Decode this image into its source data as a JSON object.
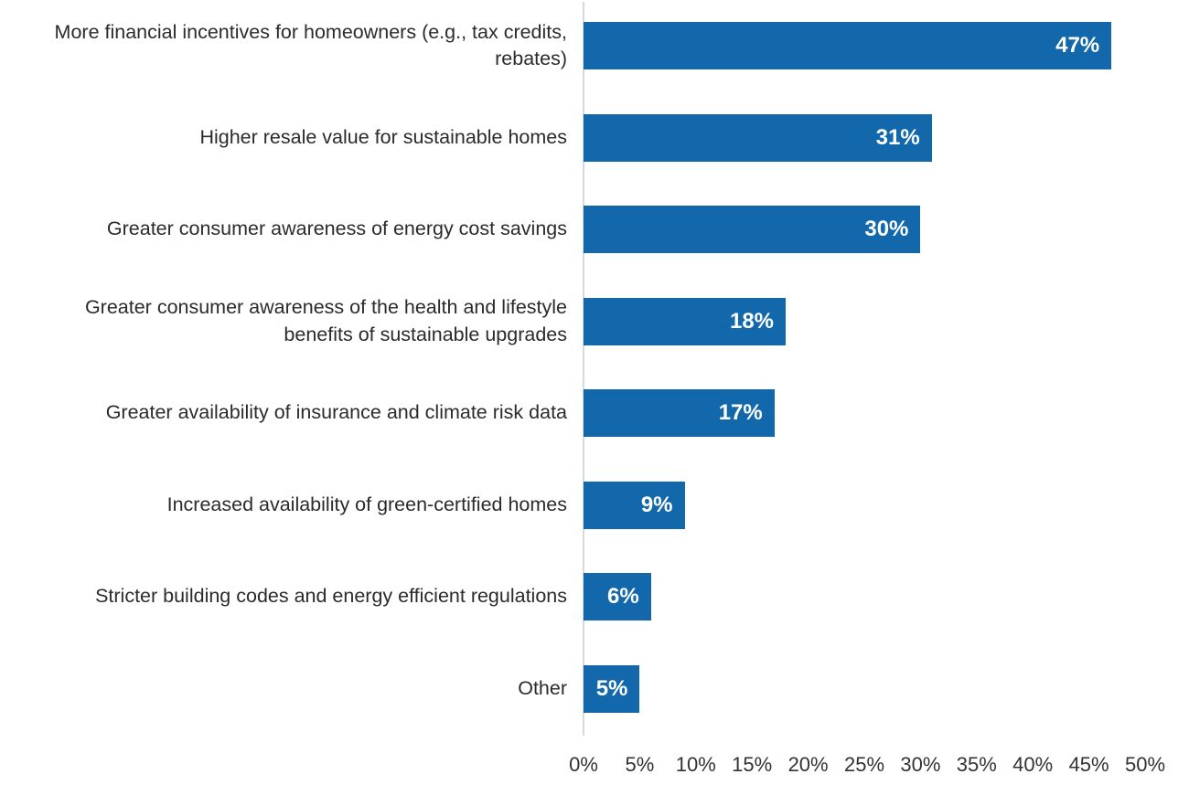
{
  "chart_data": {
    "type": "bar",
    "orientation": "horizontal",
    "categories": [
      "More financial incentives for homeowners (e.g., tax credits, rebates)",
      "Higher resale value for sustainable homes",
      "Greater consumer awareness of energy cost savings",
      "Greater consumer awareness of the health and lifestyle benefits of sustainable upgrades",
      "Greater availability of insurance and climate risk data",
      "Increased availability of green-certified homes",
      "Stricter building codes and energy efficient regulations",
      "Other"
    ],
    "values": [
      47,
      31,
      30,
      18,
      17,
      9,
      6,
      5
    ],
    "value_labels": [
      "47%",
      "31%",
      "30%",
      "18%",
      "17%",
      "9%",
      "6%",
      "5%"
    ],
    "xlim": [
      0,
      50
    ],
    "x_tick_labels": [
      "0%",
      "5%",
      "10%",
      "15%",
      "20%",
      "25%",
      "30%",
      "35%",
      "40%",
      "45%",
      "50%"
    ],
    "title": "",
    "xlabel": "",
    "ylabel": "",
    "grid": "off",
    "legend": "none",
    "colors": {
      "bar": "#1268ab",
      "category_label": "#2b2b2b",
      "value_label": "#ffffff",
      "axis_line": "#d9d9d9",
      "tick_label": "#333333",
      "background": "#ffffff"
    }
  }
}
